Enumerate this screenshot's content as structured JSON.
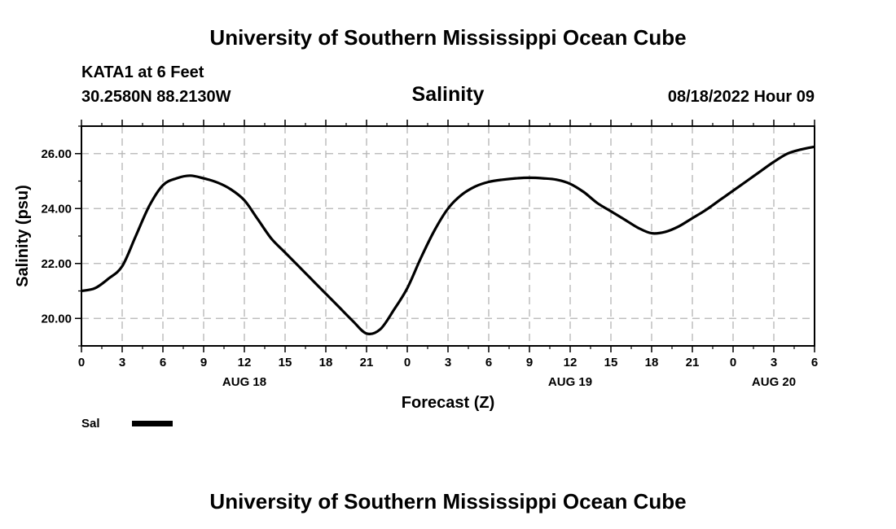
{
  "header": {
    "title": "University of Southern Mississippi Ocean Cube",
    "station": "KATA1 at 6 Feet",
    "coords": "30.2580N  88.2130W",
    "timestamp": "08/18/2022 Hour 09",
    "footer_title": "University of Southern Mississippi Ocean Cube"
  },
  "chart_data": {
    "type": "line",
    "title": "Salinity",
    "xlabel": "Forecast (Z)",
    "ylabel": "Salinity (psu)",
    "grid": true,
    "x_unit": "hours from Aug 18 00Z",
    "xlim": [
      0,
      54
    ],
    "ylim": [
      19,
      27
    ],
    "xticks": [
      0,
      3,
      6,
      9,
      12,
      15,
      18,
      21,
      24,
      27,
      30,
      33,
      36,
      39,
      42,
      45,
      48,
      51,
      54
    ],
    "xtick_labels": [
      "0",
      "3",
      "6",
      "9",
      "12",
      "15",
      "18",
      "21",
      "0",
      "3",
      "6",
      "9",
      "12",
      "15",
      "18",
      "21",
      "0",
      "3",
      "6"
    ],
    "date_labels": [
      {
        "x": 12,
        "label": "AUG 18"
      },
      {
        "x": 36,
        "label": "AUG 19"
      },
      {
        "x": 51,
        "label": "AUG 20"
      }
    ],
    "yticks": [
      20,
      22,
      24,
      26
    ],
    "ytick_labels": [
      "20.00",
      "22.00",
      "24.00",
      "26.00"
    ],
    "series": [
      {
        "name": "Sal",
        "color": "#000000",
        "x": [
          0,
          1,
          2,
          3,
          4,
          5,
          6,
          7,
          8,
          9,
          10,
          11,
          12,
          13,
          14,
          15,
          16,
          17,
          18,
          19,
          20,
          21,
          22,
          23,
          24,
          25,
          26,
          27,
          28,
          29,
          30,
          31,
          32,
          33,
          34,
          35,
          36,
          37,
          38,
          39,
          40,
          41,
          42,
          43,
          44,
          45,
          46,
          47,
          48,
          49,
          50,
          51,
          52,
          53,
          54
        ],
        "values": [
          21.0,
          21.1,
          21.45,
          21.9,
          23.0,
          24.1,
          24.85,
          25.1,
          25.2,
          25.1,
          24.95,
          24.7,
          24.3,
          23.6,
          22.9,
          22.4,
          21.9,
          21.4,
          20.9,
          20.4,
          19.9,
          19.45,
          19.6,
          20.3,
          21.1,
          22.2,
          23.2,
          24.0,
          24.5,
          24.8,
          24.97,
          25.05,
          25.1,
          25.12,
          25.1,
          25.05,
          24.9,
          24.6,
          24.2,
          23.9,
          23.6,
          23.3,
          23.1,
          23.15,
          23.35,
          23.65,
          23.95,
          24.3,
          24.65,
          25.0,
          25.35,
          25.7,
          26.0,
          26.15,
          26.25
        ]
      }
    ],
    "legend": "bottom-left"
  }
}
